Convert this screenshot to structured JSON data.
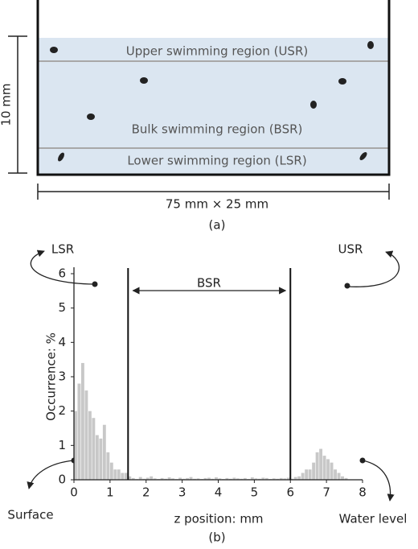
{
  "panel_a": {
    "regions": [
      "Upper swimming region (USR)",
      "Bulk swimming region (BSR)",
      "Lower swimming region (LSR)"
    ],
    "height_label": "10 mm",
    "size_label": "75 mm × 25 mm",
    "caption": "(a)"
  },
  "chart_data": {
    "type": "histogram",
    "bins": [
      0,
      0.1,
      0.2,
      0.3,
      0.4,
      0.5,
      0.6,
      0.7,
      0.8,
      0.9,
      1,
      1.1,
      1.2,
      1.3,
      1.4,
      1.5,
      1.6,
      1.7,
      1.8,
      1.9,
      2,
      2.1,
      2.2,
      2.3,
      2.4,
      2.5,
      2.6,
      2.7,
      2.8,
      2.9,
      3,
      3.1,
      3.2,
      3.3,
      3.4,
      3.5,
      3.6,
      3.7,
      3.8,
      3.9,
      4,
      4.1,
      4.2,
      4.3,
      4.4,
      4.5,
      4.6,
      4.7,
      4.8,
      4.9,
      5,
      5.1,
      5.2,
      5.3,
      5.4,
      5.5,
      5.6,
      5.7,
      5.8,
      5.9,
      6,
      6.1,
      6.2,
      6.3,
      6.4,
      6.5,
      6.6,
      6.7,
      6.8,
      6.9,
      7,
      7.1,
      7.2,
      7.3,
      7.4,
      7.5,
      7.6
    ],
    "values": [
      2.0,
      2.8,
      3.4,
      2.6,
      2.0,
      1.8,
      1.3,
      1.2,
      1.6,
      0.8,
      0.5,
      0.3,
      0.3,
      0.2,
      0.2,
      0.1,
      0.05,
      0.02,
      0.08,
      0.03,
      0.06,
      0.1,
      0.04,
      0.02,
      0.05,
      0.03,
      0.07,
      0.04,
      0.02,
      0.06,
      0.03,
      0.05,
      0.08,
      0.03,
      0.04,
      0.02,
      0.05,
      0.06,
      0.03,
      0.07,
      0.04,
      0.02,
      0.05,
      0.03,
      0.06,
      0.04,
      0.03,
      0.05,
      0.02,
      0.07,
      0.04,
      0.03,
      0.06,
      0.05,
      0.02,
      0.04,
      0.03,
      0.05,
      0.04,
      0.06,
      0.03,
      0.08,
      0.1,
      0.2,
      0.3,
      0.3,
      0.5,
      0.8,
      0.9,
      0.7,
      0.6,
      0.5,
      0.3,
      0.2,
      0.1,
      0.05
    ],
    "color": "#c8c8c8",
    "xlim": [
      0,
      8
    ],
    "ylim": [
      0,
      6
    ],
    "xticks": [
      0,
      1,
      2,
      3,
      4,
      5,
      6,
      7,
      8
    ],
    "yticks": [
      0,
      1,
      2,
      3,
      4,
      5,
      6
    ],
    "xlabel": "z position: mm",
    "ylabel": "Occurrence: %",
    "region_boundaries": [
      1.5,
      6
    ],
    "annotations": [
      "LSR",
      "USR",
      "BSR",
      "Surface",
      "Water level"
    ],
    "caption": "(b)"
  }
}
